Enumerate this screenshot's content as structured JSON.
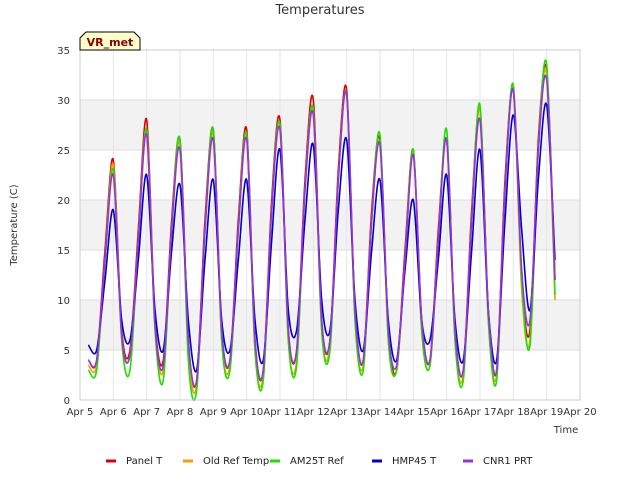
{
  "chart_data": {
    "type": "line",
    "title": "Temperatures",
    "xlabel": "Time",
    "ylabel": "Temperature (C)",
    "site_label": "VR_met",
    "xlim": [
      5,
      20
    ],
    "ylim": [
      0,
      35
    ],
    "x_ticks": [
      {
        "value": 5,
        "label": "Apr 5"
      },
      {
        "value": 6,
        "label": "Apr 6"
      },
      {
        "value": 7,
        "label": "Apr 7"
      },
      {
        "value": 8,
        "label": "Apr 8"
      },
      {
        "value": 9,
        "label": "Apr 9"
      },
      {
        "value": 10,
        "label": "Apr 10"
      },
      {
        "value": 11,
        "label": "Apr 11"
      },
      {
        "value": 12,
        "label": "Apr 12"
      },
      {
        "value": 13,
        "label": "Apr 13"
      },
      {
        "value": 14,
        "label": "Apr 14"
      },
      {
        "value": 15,
        "label": "Apr 15"
      },
      {
        "value": 16,
        "label": "Apr 16"
      },
      {
        "value": 17,
        "label": "Apr 17"
      },
      {
        "value": 18,
        "label": "Apr 18"
      },
      {
        "value": 19,
        "label": "Apr 19"
      },
      {
        "value": 20,
        "label": "Apr 20"
      }
    ],
    "y_ticks": [
      0,
      5,
      10,
      15,
      20,
      25,
      30,
      35
    ],
    "grid": true,
    "legend": "bottom",
    "series": [
      {
        "name": "Panel T",
        "color": "#dd0000",
        "x": [
          5.25,
          5.5,
          5.75,
          6.0,
          6.25,
          6.5,
          6.75,
          7.0,
          7.25,
          7.5,
          7.75,
          8.0,
          8.25,
          8.5,
          8.75,
          9.0,
          9.25,
          9.5,
          9.75,
          10.0,
          10.25,
          10.5,
          10.75,
          11.0,
          11.25,
          11.5,
          11.75,
          12.0,
          12.25,
          12.5,
          12.75,
          13.0,
          13.25,
          13.5,
          13.75,
          14.0,
          14.25,
          14.5,
          14.75,
          15.0,
          15.25,
          15.5,
          15.75,
          16.0,
          16.25,
          16.5,
          16.75,
          17.0,
          17.25,
          17.5,
          17.75,
          18.0,
          18.25,
          18.5,
          18.75,
          19.0,
          19.25
        ],
        "y": [
          4,
          4,
          15,
          24,
          7,
          5,
          17,
          28,
          8,
          4,
          18,
          26,
          6,
          2,
          18,
          27,
          7,
          4,
          18,
          27,
          6,
          3,
          20,
          28,
          7,
          5,
          22,
          30,
          8,
          6,
          23,
          31,
          9,
          4,
          19,
          26,
          7,
          3,
          15,
          25,
          8,
          4,
          17,
          26,
          7,
          3,
          19,
          29,
          9,
          3,
          22,
          31,
          12,
          7,
          26,
          33,
          12
        ]
      },
      {
        "name": "Old Ref Temp",
        "color": "#f0a000",
        "x": [
          5.25,
          5.5,
          5.75,
          6.0,
          6.25,
          6.5,
          6.75,
          7.0,
          7.25,
          7.5,
          7.75,
          8.0,
          8.25,
          8.5,
          8.75,
          9.0,
          9.25,
          9.5,
          9.75,
          10.0,
          10.25,
          10.5,
          10.75,
          11.0,
          11.25,
          11.5,
          11.75,
          12.0,
          12.25,
          12.5,
          12.75,
          13.0,
          13.25,
          13.5,
          13.75,
          14.0,
          14.25,
          14.5,
          14.75,
          15.0,
          15.25,
          15.5,
          15.75,
          16.0,
          16.25,
          16.5,
          16.75,
          17.0,
          17.25,
          17.5,
          17.75,
          18.0,
          18.25,
          18.5,
          18.75,
          19.0,
          19.25
        ],
        "y": [
          3.5,
          3.5,
          14,
          23.5,
          6.5,
          4.5,
          16,
          27,
          7.5,
          3,
          17,
          25.5,
          5,
          1.5,
          17,
          26.5,
          6,
          3.5,
          17,
          26.5,
          5,
          2.5,
          19,
          27.5,
          6,
          4,
          21,
          29,
          7,
          5.5,
          22,
          30.5,
          8,
          3.5,
          18,
          25.5,
          6,
          3,
          14,
          25,
          7,
          3.5,
          16,
          26,
          6,
          2.5,
          18,
          29,
          8,
          2.5,
          21,
          31,
          11,
          6,
          25,
          32.5,
          10
        ]
      },
      {
        "name": "AM25T Ref",
        "color": "#22dd00",
        "x": [
          5.25,
          5.5,
          5.75,
          6.0,
          6.25,
          6.5,
          6.75,
          7.0,
          7.25,
          7.5,
          7.75,
          8.0,
          8.25,
          8.5,
          8.75,
          9.0,
          9.25,
          9.5,
          9.75,
          10.0,
          10.25,
          10.5,
          10.75,
          11.0,
          11.25,
          11.5,
          11.75,
          12.0,
          12.25,
          12.5,
          12.75,
          13.0,
          13.25,
          13.5,
          13.75,
          14.0,
          14.25,
          14.5,
          14.75,
          15.0,
          15.25,
          15.5,
          15.75,
          16.0,
          16.25,
          16.5,
          16.75,
          17.0,
          17.25,
          17.5,
          17.75,
          18.0,
          18.25,
          18.5,
          18.75,
          19.0,
          19.25
        ],
        "y": [
          3,
          3,
          14,
          23,
          6,
          3,
          16,
          27,
          7,
          2,
          17,
          26,
          4,
          1,
          17,
          27,
          6,
          3,
          17,
          26.5,
          5,
          2,
          19,
          27.5,
          6,
          3.5,
          21,
          29,
          7,
          5,
          22,
          30.5,
          8,
          3,
          18,
          26.5,
          6,
          3,
          14,
          25,
          7,
          3.5,
          16,
          27,
          6,
          2,
          18,
          29.5,
          8,
          2,
          21,
          31.5,
          12,
          5.5,
          25,
          33.5,
          10.5
        ]
      },
      {
        "name": "HMP45 T",
        "color": "#0000cc",
        "x": [
          5.25,
          5.5,
          5.75,
          6.0,
          6.25,
          6.5,
          6.75,
          7.0,
          7.25,
          7.5,
          7.75,
          8.0,
          8.25,
          8.5,
          8.75,
          9.0,
          9.25,
          9.5,
          9.75,
          10.0,
          10.25,
          10.5,
          10.75,
          11.0,
          11.25,
          11.5,
          11.75,
          12.0,
          12.25,
          12.5,
          12.75,
          13.0,
          13.25,
          13.5,
          13.75,
          14.0,
          14.25,
          14.5,
          14.75,
          15.0,
          15.25,
          15.5,
          15.75,
          16.0,
          16.25,
          16.5,
          16.75,
          17.0,
          17.25,
          17.5,
          17.75,
          18.0,
          18.25,
          18.5,
          18.75,
          19.0,
          19.25
        ],
        "y": [
          5.5,
          5,
          12,
          19,
          8,
          6,
          14,
          22.5,
          9,
          5,
          15,
          21.5,
          8,
          3,
          14,
          22,
          8,
          5,
          14,
          22,
          8,
          4,
          16,
          25,
          9,
          7,
          18,
          25.5,
          10,
          7,
          19,
          26,
          10,
          5,
          15,
          22,
          8,
          4,
          13,
          20,
          8,
          6,
          14,
          22.5,
          8,
          4,
          15,
          25,
          9,
          4,
          18,
          28.5,
          17,
          9,
          22,
          29.5,
          14
        ]
      },
      {
        "name": "CNR1 PRT",
        "color": "#9933dd",
        "x": [
          5.25,
          5.5,
          5.75,
          6.0,
          6.25,
          6.5,
          6.75,
          7.0,
          7.25,
          7.5,
          7.75,
          8.0,
          8.25,
          8.5,
          8.75,
          9.0,
          9.25,
          9.5,
          9.75,
          10.0,
          10.25,
          10.5,
          10.75,
          11.0,
          11.25,
          11.5,
          11.75,
          12.0,
          12.25,
          12.5,
          12.75,
          13.0,
          13.25,
          13.5,
          13.75,
          14.0,
          14.25,
          14.5,
          14.75,
          15.0,
          15.25,
          15.5,
          15.75,
          16.0,
          16.25,
          16.5,
          16.75,
          17.0,
          17.25,
          17.5,
          17.75,
          18.0,
          18.25,
          18.5,
          18.75,
          19.0,
          19.25
        ],
        "y": [
          4,
          4,
          14,
          22.5,
          6.5,
          4.5,
          16,
          26.5,
          7.5,
          3.5,
          17,
          25,
          6,
          2,
          17,
          26,
          7,
          4,
          17,
          26,
          6,
          3,
          19,
          27,
          7,
          5,
          21,
          28.5,
          8,
          6,
          22,
          30.5,
          9,
          4,
          18,
          25.5,
          7,
          3.5,
          14,
          24.5,
          8,
          4,
          16,
          26,
          7,
          3,
          18,
          28,
          9,
          3,
          21,
          31,
          13,
          8,
          25,
          32,
          12
        ]
      }
    ]
  }
}
